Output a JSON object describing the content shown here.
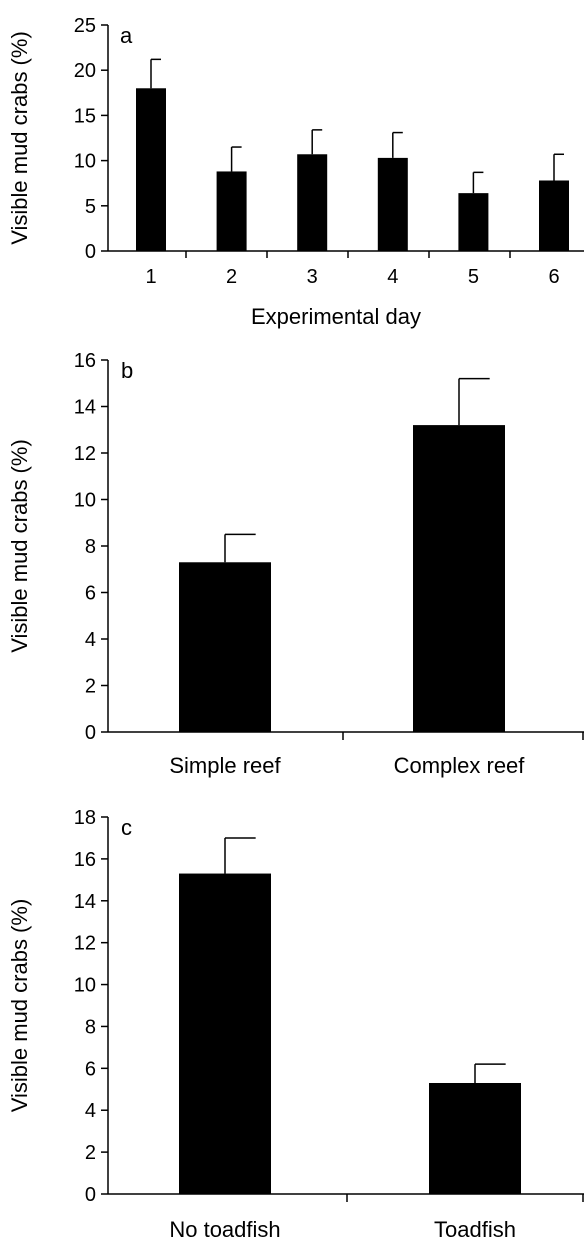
{
  "chart_data": [
    {
      "type": "bar",
      "panel_label": "a",
      "title": "",
      "xlabel": "Experimental day",
      "ylabel": "Visible mud crabs (%)",
      "ylim": [
        0,
        25
      ],
      "yticks": [
        "0",
        "5",
        "10",
        "15",
        "20",
        "25"
      ],
      "categories": [
        "1",
        "2",
        "3",
        "4",
        "5",
        "6"
      ],
      "values": [
        18.0,
        8.8,
        10.7,
        10.3,
        6.4,
        7.8
      ],
      "error_upper": [
        21.2,
        11.5,
        13.4,
        13.1,
        8.7,
        10.7
      ],
      "grid": false,
      "bar_color": "#000000"
    },
    {
      "type": "bar",
      "panel_label": "b",
      "title": "",
      "xlabel": "",
      "ylabel": "Visible mud crabs (%)",
      "ylim": [
        0,
        16
      ],
      "yticks": [
        "0",
        "2",
        "4",
        "6",
        "8",
        "10",
        "12",
        "14",
        "16"
      ],
      "categories": [
        "Simple reef",
        "Complex reef"
      ],
      "values": [
        7.3,
        13.2
      ],
      "error_upper": [
        8.5,
        15.2
      ],
      "grid": false,
      "bar_color": "#000000"
    },
    {
      "type": "bar",
      "panel_label": "c",
      "title": "",
      "xlabel": "",
      "ylabel": "Visible mud crabs (%)",
      "ylim": [
        0,
        18
      ],
      "yticks": [
        "0",
        "2",
        "4",
        "6",
        "8",
        "10",
        "12",
        "14",
        "16",
        "18"
      ],
      "categories": [
        "No toadfish",
        "Toadfish"
      ],
      "values": [
        15.3,
        5.3
      ],
      "error_upper": [
        17.0,
        6.2
      ],
      "grid": false,
      "bar_color": "#000000"
    }
  ]
}
